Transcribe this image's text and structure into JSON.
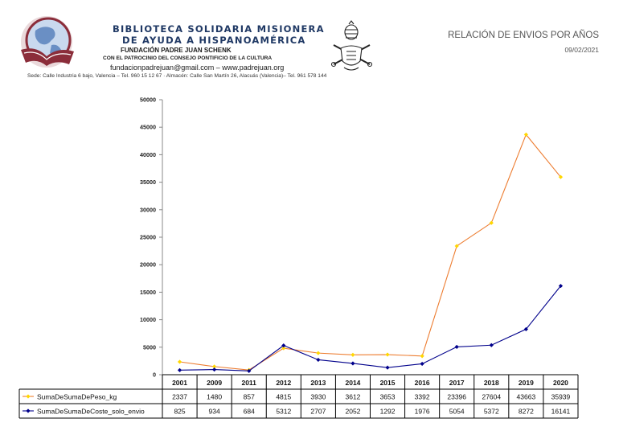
{
  "header": {
    "org_line1": "BIBLIOTECA SOLIDARIA MISIONERA",
    "org_line2": "DE AYUDA A HISPANOAMÉRICA",
    "foundation": "FUNDACIÓN PADRE JUAN SCHENK",
    "patronage": "CON EL PATROCINIO DEL CONSEJO PONTIFICIO DE LA CULTURA",
    "contact": "fundacionpadrejuan@gmail.com – www.padrejuan.org",
    "address": "Sede: Calle Industria 6 bajo, Valencia – Tel. 960 15 12 67 · Almacén: Calle San Martín 26, Alacuás (Valencia)– Tel. 961 578 144",
    "report_title": "RELACIÓN DE ENVIOS POR AÑOS",
    "report_date": "09/02/2021"
  },
  "icons": [
    "globe-book-logo-icon",
    "papal-coat-of-arms-icon"
  ],
  "chart_data": {
    "type": "line",
    "categories": [
      "2001",
      "2009",
      "2011",
      "2012",
      "2013",
      "2014",
      "2015",
      "2016",
      "2017",
      "2018",
      "2019",
      "2020"
    ],
    "ylim": [
      0,
      50000
    ],
    "yticks": [
      0,
      5000,
      10000,
      15000,
      20000,
      25000,
      30000,
      35000,
      40000,
      45000,
      50000
    ],
    "grid": false,
    "legend": "data-table",
    "series": [
      {
        "name": "SumaDeSumaDePeso_kg",
        "color": "#ed7d31",
        "marker_color": "#ffd700",
        "values": [
          2337,
          1480,
          857,
          4815,
          3930,
          3612,
          3653,
          3392,
          23396,
          27604,
          43663,
          35939
        ]
      },
      {
        "name": "SumaDeSumaDeCoste_solo_envio",
        "color": "#00008b",
        "marker_color": "#00008b",
        "values": [
          825,
          934,
          684,
          5312,
          2707,
          2052,
          1292,
          1976,
          5054,
          5372,
          8272,
          16141
        ]
      }
    ]
  }
}
